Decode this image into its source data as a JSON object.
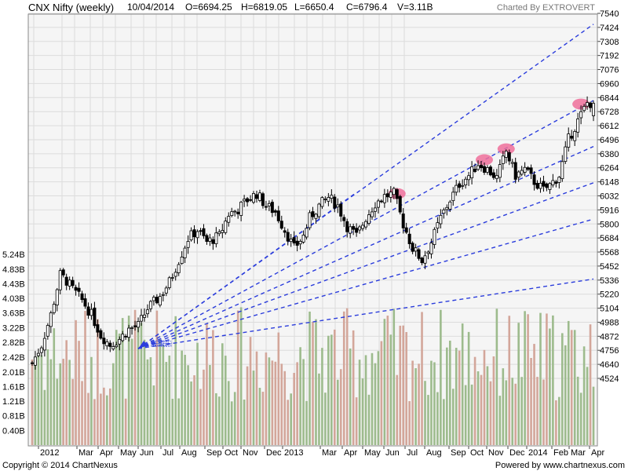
{
  "header": {
    "title": "CNX Nifty (weekly)",
    "date": "10/04/2014",
    "open": "O=6694.25",
    "high": "H=6819.05",
    "low": "L=6650.4",
    "close": "C=6796.4",
    "volume": "V=3.11B",
    "credit": "Charted By EXTROVERT"
  },
  "footer": {
    "copyright": "Copyright © 2014 ChartNexus",
    "powered": "Powered by www.chartnexus.com"
  },
  "colors": {
    "background": "#f5f5f5",
    "grid": "#dcdcdc",
    "candle_up": "#ffffff",
    "candle_down": "#000000",
    "volume_up": "#9dbb8d",
    "volume_down": "#d3a69a",
    "trendline": "#2b3ddc",
    "highlight": "#ee6f9a"
  },
  "chart_data": {
    "type": "candlestick",
    "title": "CNX Nifty (weekly)",
    "price_axis": {
      "ticks": [
        7540,
        7424,
        7308,
        7192,
        7076,
        6960,
        6844,
        6728,
        6612,
        6496,
        6380,
        6264,
        6148,
        6032,
        5916,
        5800,
        5684,
        5568,
        5452,
        5336,
        5220,
        5104,
        4988,
        4872,
        4756,
        4640,
        4524
      ],
      "range": [
        4300,
        7540
      ]
    },
    "volume_axis": {
      "ticks": [
        "5.24B",
        "4.83B",
        "4.43B",
        "4.03B",
        "3.63B",
        "3.22B",
        "2.82B",
        "2.42B",
        "2.01B",
        "1.61B",
        "1.21B",
        "0.81B",
        "0.40B"
      ],
      "range_billions": [
        0,
        5.3
      ]
    },
    "x_axis": {
      "labels": [
        "2012",
        "Mar",
        "Apr",
        "May",
        "Jun",
        "Jul",
        "Aug",
        "Sep",
        "Oct",
        "Nov",
        "Dec",
        "2013",
        "Mar",
        "Apr",
        "May",
        "Jun",
        "Jul",
        "Aug",
        "Sep",
        "Oct",
        "Nov",
        "Dec",
        "2014",
        "Feb",
        "Mar",
        "Apr"
      ]
    },
    "fan_origin": {
      "week": 34,
      "price": 4770
    },
    "fan_lines": [
      {
        "end_week": 180,
        "end_price": 7450
      },
      {
        "end_week": 104,
        "end_price": 6060
      },
      {
        "end_week": 180,
        "end_price": 6820
      },
      {
        "end_week": 180,
        "end_price": 6440
      },
      {
        "end_week": 180,
        "end_price": 6140
      },
      {
        "end_week": 180,
        "end_price": 5840
      },
      {
        "end_week": 180,
        "end_price": 5345
      }
    ],
    "fan_labels": [
      "S10",
      "S11",
      "S12",
      "S13",
      "S14",
      "S15",
      "S16",
      "S17"
    ],
    "highlights": [
      {
        "week": 117,
        "price": 6050
      },
      {
        "week": 145,
        "price": 6330
      },
      {
        "week": 152,
        "price": 6420
      },
      {
        "week": 176,
        "price": 6790
      }
    ],
    "last_candle": {
      "open": 6694.25,
      "high": 6819.05,
      "low": 6650.4,
      "close": 6796.4,
      "volume_billions": 3.11
    }
  }
}
